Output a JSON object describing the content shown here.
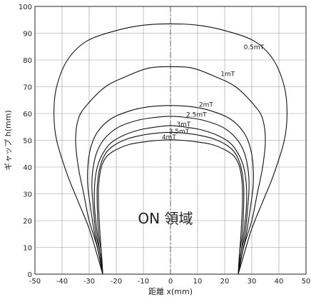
{
  "chart_data": {
    "type": "line",
    "title": "",
    "xlabel": "距離 x(mm)",
    "ylabel": "ギャップ h(mm)",
    "xlim": [
      -50,
      50
    ],
    "ylim": [
      0,
      100
    ],
    "xticks": [
      -50,
      -40,
      -30,
      -20,
      -10,
      0,
      10,
      20,
      30,
      40,
      50
    ],
    "yticks": [
      0,
      10,
      20,
      30,
      40,
      50,
      60,
      70,
      80,
      90,
      100
    ],
    "grid": true,
    "legend": "none",
    "center_line_x": 0,
    "annotation": "ON 領域",
    "line_color": "#111111",
    "grid_color": "#999999",
    "series": [
      {
        "name": "0.5mT",
        "x": [
          -25,
          -27,
          -30,
          -34,
          -38,
          -42,
          -43,
          -42,
          -38,
          -31,
          -20,
          -10,
          0,
          10,
          20,
          31,
          38,
          42,
          43,
          42,
          38,
          34,
          30,
          27,
          25
        ],
        "y": [
          0,
          7,
          17,
          27,
          37,
          50,
          60,
          70,
          80,
          87,
          91,
          93,
          93.5,
          93,
          91,
          87,
          80,
          70,
          60,
          50,
          37,
          27,
          17,
          7,
          0
        ]
      },
      {
        "name": "1mT",
        "x": [
          -25,
          -27,
          -30,
          -32,
          -34,
          -35,
          -34,
          -31,
          -24,
          -16,
          -8,
          0,
          8,
          16,
          24,
          31,
          34,
          35,
          34,
          32,
          30,
          27,
          25
        ],
        "y": [
          0,
          10,
          20,
          30,
          40,
          50,
          58,
          63,
          70,
          74,
          77,
          77.5,
          77,
          74,
          70,
          63,
          58,
          50,
          40,
          30,
          20,
          10,
          0
        ]
      },
      {
        "name": "2mT",
        "x": [
          -25,
          -26.5,
          -28,
          -29.5,
          -30.5,
          -30.5,
          -29.5,
          -27,
          -22,
          -15,
          -8,
          0,
          8,
          15,
          22,
          27,
          29.5,
          30.5,
          30.5,
          29.5,
          28,
          26.5,
          25
        ],
        "y": [
          0,
          8,
          15,
          25,
          33,
          40,
          47,
          53,
          58,
          61,
          62.5,
          63,
          62.5,
          61,
          58,
          53,
          47,
          40,
          33,
          25,
          15,
          8,
          0
        ]
      },
      {
        "name": "2.5mT",
        "x": [
          -25,
          -26,
          -27.5,
          -28.5,
          -29,
          -28.5,
          -27,
          -24,
          -19,
          -12,
          -6,
          0,
          6,
          12,
          19,
          24,
          27,
          28.5,
          29,
          28.5,
          27.5,
          26,
          25
        ],
        "y": [
          0,
          8,
          15,
          25,
          33,
          40,
          46,
          51,
          55,
          57.5,
          58.5,
          59,
          58.5,
          57.5,
          55,
          51,
          46,
          40,
          33,
          25,
          15,
          8,
          0
        ]
      },
      {
        "name": "3mT",
        "x": [
          -25,
          -26,
          -27,
          -28,
          -28,
          -27,
          -25,
          -22,
          -17,
          -11,
          -5,
          0,
          5,
          11,
          17,
          22,
          25,
          27,
          28,
          28,
          27,
          26,
          25
        ],
        "y": [
          0,
          8,
          15,
          25,
          33,
          40,
          45,
          49,
          52,
          54,
          55,
          55.5,
          55,
          54,
          52,
          49,
          45,
          40,
          33,
          25,
          15,
          8,
          0
        ]
      },
      {
        "name": "3.5mT",
        "x": [
          -25,
          -25.5,
          -26.5,
          -27,
          -27,
          -26,
          -24,
          -21,
          -16,
          -10,
          -5,
          0,
          5,
          10,
          16,
          21,
          24,
          26,
          27,
          27,
          26.5,
          25.5,
          25
        ],
        "y": [
          0,
          8,
          15,
          25,
          33,
          40,
          45,
          48,
          50.5,
          52,
          52.7,
          53,
          52.7,
          52,
          50.5,
          48,
          45,
          40,
          33,
          25,
          15,
          8,
          0
        ]
      },
      {
        "name": "4mT",
        "x": [
          -25,
          -25.5,
          -26,
          -26.5,
          -26.5,
          -25.5,
          -23.5,
          -20,
          -15,
          -9,
          -4,
          0,
          4,
          9,
          15,
          20,
          23.5,
          25.5,
          26.5,
          26.5,
          26,
          25.5,
          25
        ],
        "y": [
          0,
          8,
          15,
          25,
          33,
          40,
          44,
          46.5,
          48.5,
          49.5,
          50,
          50.2,
          50,
          49.5,
          48.5,
          46.5,
          44,
          40,
          33,
          25,
          15,
          8,
          0
        ]
      }
    ]
  }
}
